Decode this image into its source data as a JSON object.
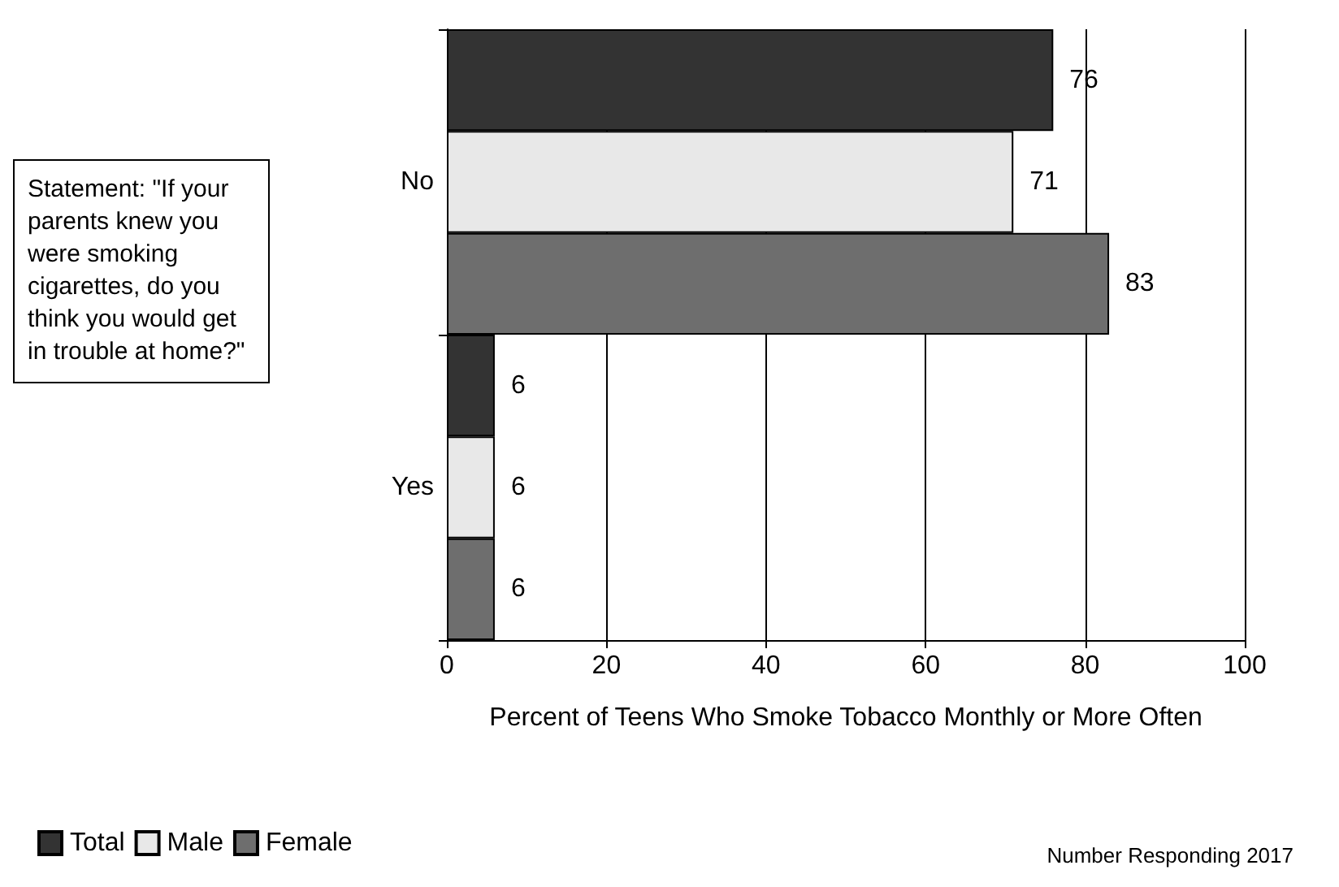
{
  "chart_data": {
    "type": "bar",
    "orientation": "horizontal",
    "xlabel": "Percent of Teens Who Smoke Tobacco Monthly or More Often",
    "categories": [
      "No",
      "Yes"
    ],
    "series": [
      {
        "name": "Total",
        "color": "#333333",
        "values": [
          76,
          6
        ]
      },
      {
        "name": "Male",
        "color": "#e8e8e8",
        "values": [
          71,
          6
        ]
      },
      {
        "name": "Female",
        "color": "#6e6e6e",
        "values": [
          83,
          6
        ]
      }
    ],
    "xlim": [
      0,
      100
    ],
    "xticks": [
      0,
      20,
      40,
      60,
      80,
      100
    ],
    "grid": "x",
    "legend": "bottom left",
    "data_labels": true,
    "annotations": [
      "Statement: \"If your parents knew you were smoking cigarettes, do you think you would get in trouble at home?\"",
      "Number Responding 2017"
    ]
  }
}
